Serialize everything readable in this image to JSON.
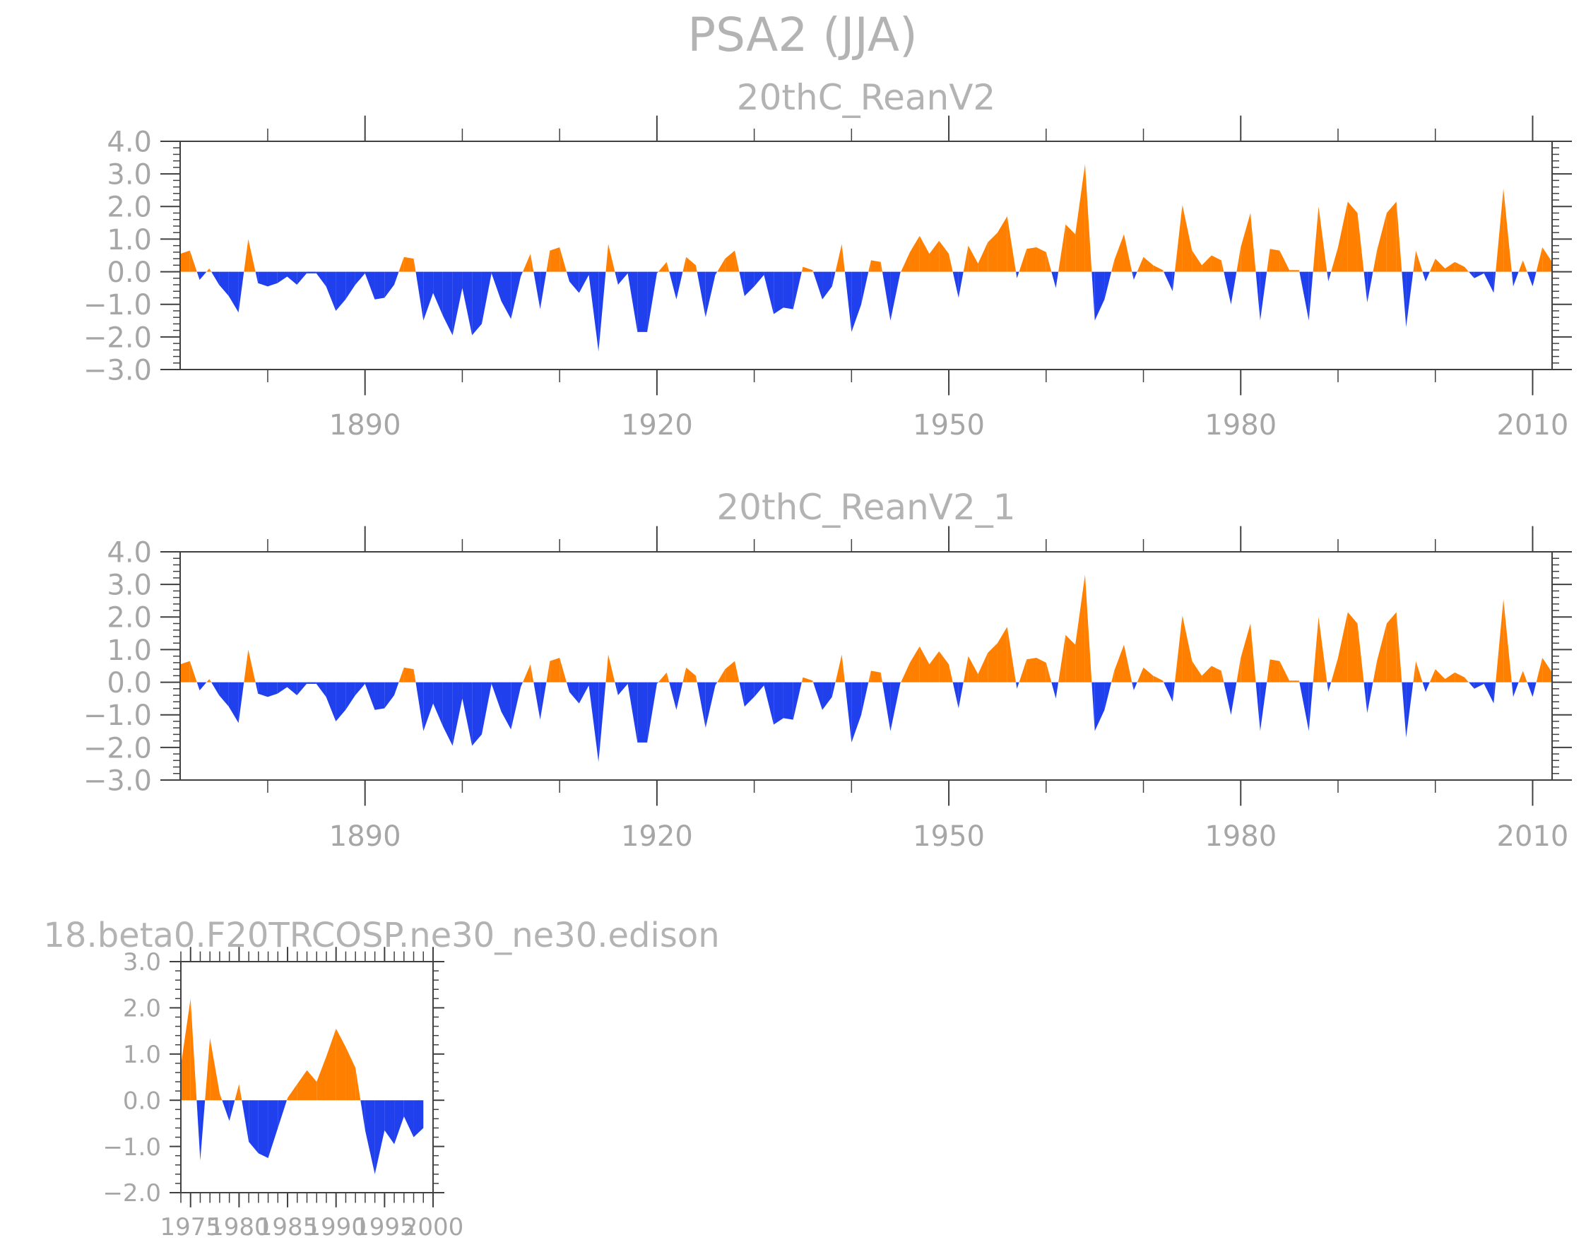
{
  "main_title": "PSA2 (JJA)",
  "colors": {
    "positive": "#ff8000",
    "negative": "#2040ee",
    "text": "#b3b3b3",
    "axis": "#404040"
  },
  "chart_data": [
    {
      "type": "area",
      "title": "20thC_ReanV2",
      "xlim": [
        1871,
        2012
      ],
      "ylim": [
        -3.0,
        4.0
      ],
      "x_ticks": [
        1890,
        1920,
        1950,
        1980,
        2010
      ],
      "x_tick_labels": [
        "1890",
        "1920",
        "1950",
        "1980",
        "2010"
      ],
      "y_ticks": [
        4.0,
        3.0,
        2.0,
        1.0,
        0.0,
        -1.0,
        -2.0,
        -3.0
      ],
      "y_tick_labels": [
        "4.0",
        "3.0",
        "2.0",
        "1.0",
        "0.0",
        "−1.0",
        "−2.0",
        "−3.0"
      ],
      "x": [
        1871,
        1872,
        1873,
        1874,
        1875,
        1876,
        1877,
        1878,
        1879,
        1880,
        1881,
        1882,
        1883,
        1884,
        1885,
        1886,
        1887,
        1888,
        1889,
        1890,
        1891,
        1892,
        1893,
        1894,
        1895,
        1896,
        1897,
        1898,
        1899,
        1900,
        1901,
        1902,
        1903,
        1904,
        1905,
        1906,
        1907,
        1908,
        1909,
        1910,
        1911,
        1912,
        1913,
        1914,
        1915,
        1916,
        1917,
        1918,
        1919,
        1920,
        1921,
        1922,
        1923,
        1924,
        1925,
        1926,
        1927,
        1928,
        1929,
        1930,
        1931,
        1932,
        1933,
        1934,
        1935,
        1936,
        1937,
        1938,
        1939,
        1940,
        1941,
        1942,
        1943,
        1944,
        1945,
        1946,
        1947,
        1948,
        1949,
        1950,
        1951,
        1952,
        1953,
        1954,
        1955,
        1956,
        1957,
        1958,
        1959,
        1960,
        1961,
        1962,
        1963,
        1964,
        1965,
        1966,
        1967,
        1968,
        1969,
        1970,
        1971,
        1972,
        1973,
        1974,
        1975,
        1976,
        1977,
        1978,
        1979,
        1980,
        1981,
        1982,
        1983,
        1984,
        1985,
        1986,
        1987,
        1988,
        1989,
        1990,
        1991,
        1992,
        1993,
        1994,
        1995,
        1996,
        1997,
        1998,
        1999,
        2000,
        2001,
        2002,
        2003,
        2004,
        2005,
        2006,
        2007,
        2008,
        2009,
        2010,
        2011,
        2012
      ],
      "y": [
        0.55,
        0.65,
        -0.25,
        0.1,
        -0.4,
        -0.75,
        -1.25,
        1.0,
        -0.35,
        -0.45,
        -0.35,
        -0.15,
        -0.4,
        -0.05,
        -0.05,
        -0.45,
        -1.2,
        -0.85,
        -0.4,
        -0.05,
        -0.85,
        -0.8,
        -0.4,
        0.45,
        0.4,
        -1.5,
        -0.65,
        -1.35,
        -1.95,
        -0.5,
        -1.95,
        -1.6,
        -0.05,
        -0.9,
        -1.45,
        -0.15,
        0.55,
        -1.15,
        0.65,
        0.75,
        -0.3,
        -0.65,
        -0.1,
        -2.45,
        0.85,
        -0.4,
        -0.05,
        -1.85,
        -1.85,
        -0.05,
        0.3,
        -0.85,
        0.45,
        0.2,
        -1.4,
        -0.1,
        0.4,
        0.65,
        -0.75,
        -0.45,
        -0.1,
        -1.3,
        -1.1,
        -1.15,
        0.15,
        0.05,
        -0.85,
        -0.45,
        0.85,
        -1.85,
        -1.0,
        0.35,
        0.3,
        -1.5,
        -0.05,
        0.6,
        1.1,
        0.55,
        0.95,
        0.55,
        -0.8,
        0.8,
        0.25,
        0.9,
        1.2,
        1.7,
        -0.2,
        0.7,
        0.75,
        0.6,
        -0.5,
        1.45,
        1.15,
        3.3,
        -1.5,
        -0.85,
        0.35,
        1.15,
        -0.25,
        0.45,
        0.2,
        0.05,
        -0.6,
        2.05,
        0.65,
        0.2,
        0.5,
        0.35,
        -1.0,
        0.75,
        1.8,
        -1.5,
        0.7,
        0.65,
        0.05,
        0.05,
        -1.5,
        2.0,
        -0.3,
        0.75,
        2.15,
        1.8,
        -0.95,
        0.65,
        1.8,
        2.15,
        -1.7,
        0.65,
        -0.3,
        0.4,
        0.1,
        0.3,
        0.15,
        -0.2,
        -0.05,
        -0.65,
        2.55,
        -0.45,
        0.35,
        -0.45,
        0.75,
        0.3
      ]
    },
    {
      "type": "area",
      "title": "20thC_ReanV2_1",
      "xlim": [
        1871,
        2012
      ],
      "ylim": [
        -3.0,
        4.0
      ],
      "x_ticks": [
        1890,
        1920,
        1950,
        1980,
        2010
      ],
      "x_tick_labels": [
        "1890",
        "1920",
        "1950",
        "1980",
        "2010"
      ],
      "y_ticks": [
        4.0,
        3.0,
        2.0,
        1.0,
        0.0,
        -1.0,
        -2.0,
        -3.0
      ],
      "y_tick_labels": [
        "4.0",
        "3.0",
        "2.0",
        "1.0",
        "0.0",
        "−1.0",
        "−2.0",
        "−3.0"
      ],
      "x": [
        1871,
        1872,
        1873,
        1874,
        1875,
        1876,
        1877,
        1878,
        1879,
        1880,
        1881,
        1882,
        1883,
        1884,
        1885,
        1886,
        1887,
        1888,
        1889,
        1890,
        1891,
        1892,
        1893,
        1894,
        1895,
        1896,
        1897,
        1898,
        1899,
        1900,
        1901,
        1902,
        1903,
        1904,
        1905,
        1906,
        1907,
        1908,
        1909,
        1910,
        1911,
        1912,
        1913,
        1914,
        1915,
        1916,
        1917,
        1918,
        1919,
        1920,
        1921,
        1922,
        1923,
        1924,
        1925,
        1926,
        1927,
        1928,
        1929,
        1930,
        1931,
        1932,
        1933,
        1934,
        1935,
        1936,
        1937,
        1938,
        1939,
        1940,
        1941,
        1942,
        1943,
        1944,
        1945,
        1946,
        1947,
        1948,
        1949,
        1950,
        1951,
        1952,
        1953,
        1954,
        1955,
        1956,
        1957,
        1958,
        1959,
        1960,
        1961,
        1962,
        1963,
        1964,
        1965,
        1966,
        1967,
        1968,
        1969,
        1970,
        1971,
        1972,
        1973,
        1974,
        1975,
        1976,
        1977,
        1978,
        1979,
        1980,
        1981,
        1982,
        1983,
        1984,
        1985,
        1986,
        1987,
        1988,
        1989,
        1990,
        1991,
        1992,
        1993,
        1994,
        1995,
        1996,
        1997,
        1998,
        1999,
        2000,
        2001,
        2002,
        2003,
        2004,
        2005,
        2006,
        2007,
        2008,
        2009,
        2010,
        2011,
        2012
      ],
      "y": [
        0.55,
        0.65,
        -0.25,
        0.1,
        -0.4,
        -0.75,
        -1.25,
        1.0,
        -0.35,
        -0.45,
        -0.35,
        -0.15,
        -0.4,
        -0.05,
        -0.05,
        -0.45,
        -1.2,
        -0.85,
        -0.4,
        -0.05,
        -0.85,
        -0.8,
        -0.4,
        0.45,
        0.4,
        -1.5,
        -0.65,
        -1.35,
        -1.95,
        -0.5,
        -1.95,
        -1.6,
        -0.05,
        -0.9,
        -1.45,
        -0.15,
        0.55,
        -1.15,
        0.65,
        0.75,
        -0.3,
        -0.65,
        -0.1,
        -2.45,
        0.85,
        -0.4,
        -0.05,
        -1.85,
        -1.85,
        -0.05,
        0.3,
        -0.85,
        0.45,
        0.2,
        -1.4,
        -0.1,
        0.4,
        0.65,
        -0.75,
        -0.45,
        -0.1,
        -1.3,
        -1.1,
        -1.15,
        0.15,
        0.05,
        -0.85,
        -0.45,
        0.85,
        -1.85,
        -1.0,
        0.35,
        0.3,
        -1.5,
        -0.05,
        0.6,
        1.1,
        0.55,
        0.95,
        0.55,
        -0.8,
        0.8,
        0.25,
        0.9,
        1.2,
        1.7,
        -0.2,
        0.7,
        0.75,
        0.6,
        -0.5,
        1.45,
        1.15,
        3.3,
        -1.5,
        -0.85,
        0.35,
        1.15,
        -0.25,
        0.45,
        0.2,
        0.05,
        -0.6,
        2.05,
        0.65,
        0.2,
        0.5,
        0.35,
        -1.0,
        0.75,
        1.8,
        -1.5,
        0.7,
        0.65,
        0.05,
        0.05,
        -1.5,
        2.0,
        -0.3,
        0.75,
        2.15,
        1.8,
        -0.95,
        0.65,
        1.8,
        2.15,
        -1.7,
        0.65,
        -0.3,
        0.4,
        0.1,
        0.3,
        0.15,
        -0.2,
        -0.05,
        -0.65,
        2.55,
        -0.45,
        0.35,
        -0.45,
        0.75,
        0.3
      ]
    },
    {
      "type": "area",
      "title": "18.beta0.F20TRCOSP.ne30_ne30.edison",
      "xlim": [
        1974,
        2000
      ],
      "ylim": [
        -2.0,
        3.0
      ],
      "x_ticks": [
        1975,
        1980,
        1985,
        1990,
        1995,
        2000
      ],
      "x_tick_labels": [
        "1975",
        "1980",
        "1985",
        "1990",
        "1995",
        "2000"
      ],
      "y_ticks": [
        3.0,
        2.0,
        1.0,
        0.0,
        -1.0,
        -2.0
      ],
      "y_tick_labels": [
        "3.0",
        "2.0",
        "1.0",
        "0.0",
        "−1.0",
        "−2.0"
      ],
      "x": [
        1974,
        1975,
        1976,
        1977,
        1978,
        1979,
        1980,
        1981,
        1982,
        1983,
        1984,
        1985,
        1986,
        1987,
        1988,
        1989,
        1990,
        1991,
        1992,
        1993,
        1994,
        1995,
        1996,
        1997,
        1998,
        1999
      ],
      "y": [
        0.75,
        2.2,
        -1.3,
        1.35,
        0.15,
        -0.45,
        0.35,
        -0.9,
        -1.15,
        -1.25,
        -0.6,
        0.05,
        0.35,
        0.65,
        0.4,
        0.95,
        1.55,
        1.15,
        0.7,
        -0.65,
        -1.6,
        -0.65,
        -0.95,
        -0.35,
        -0.8,
        -0.6
      ]
    }
  ]
}
